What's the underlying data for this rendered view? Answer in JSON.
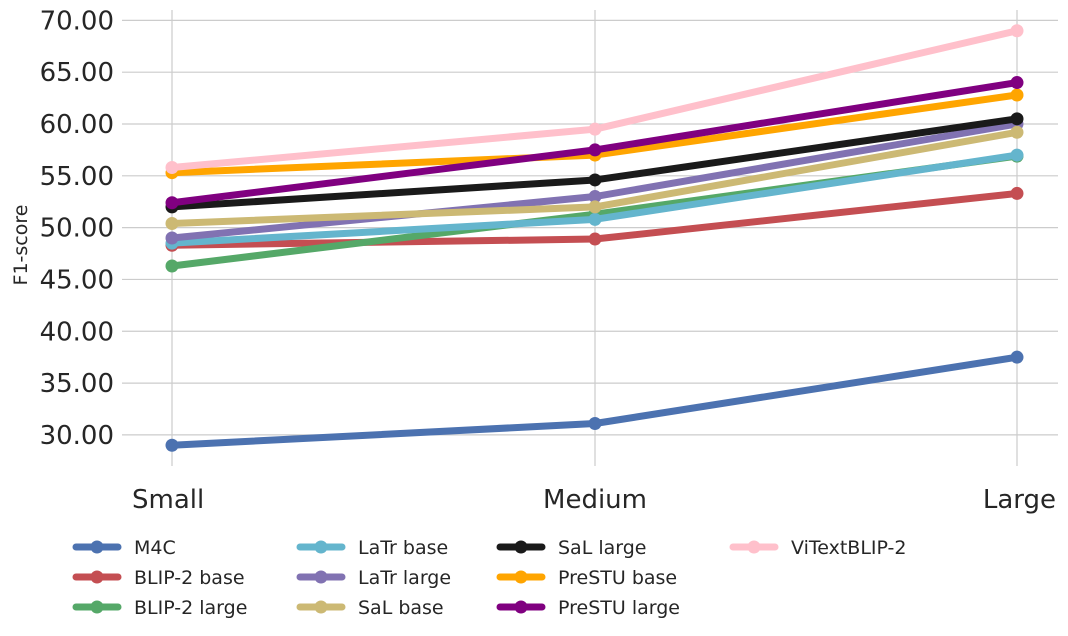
{
  "chart_data": {
    "type": "line",
    "title": "",
    "xlabel": "",
    "ylabel": "F1-score",
    "categories": [
      "Small",
      "Medium",
      "Large"
    ],
    "ylim": [
      27.0,
      71.0
    ],
    "yticks": [
      "30.00",
      "35.00",
      "40.00",
      "45.00",
      "50.00",
      "55.00",
      "60.00",
      "65.00",
      "70.00"
    ],
    "ytick_values": [
      30,
      35,
      40,
      45,
      50,
      55,
      60,
      65,
      70
    ],
    "grid": true,
    "legend_position": "bottom",
    "series": [
      {
        "name": "M4C",
        "color": "#4c72b0",
        "values": [
          29.0,
          31.1,
          37.5
        ]
      },
      {
        "name": "BLIP-2 base",
        "color": "#c44e52",
        "values": [
          48.3,
          48.9,
          53.3
        ]
      },
      {
        "name": "BLIP-2 large",
        "color": "#55a868",
        "values": [
          46.3,
          51.3,
          56.9
        ]
      },
      {
        "name": "LaTr base",
        "color": "#64b5cd",
        "values": [
          48.5,
          50.8,
          57.0
        ]
      },
      {
        "name": "LaTr large",
        "color": "#8172b2",
        "values": [
          49.0,
          53.0,
          60.0
        ]
      },
      {
        "name": "SaL base",
        "color": "#ccb974",
        "values": [
          50.4,
          52.0,
          59.2
        ]
      },
      {
        "name": "SaL large",
        "color": "#1a1a1a",
        "values": [
          52.0,
          54.6,
          60.5
        ]
      },
      {
        "name": "PreSTU base",
        "color": "#ffa500",
        "values": [
          55.3,
          57.0,
          62.8
        ]
      },
      {
        "name": "PreSTU large",
        "color": "#800080",
        "values": [
          52.4,
          57.5,
          64.0
        ]
      },
      {
        "name": "ViTextBLIP-2",
        "color": "#ffc0cb",
        "values": [
          55.8,
          59.5,
          69.0
        ]
      }
    ]
  }
}
